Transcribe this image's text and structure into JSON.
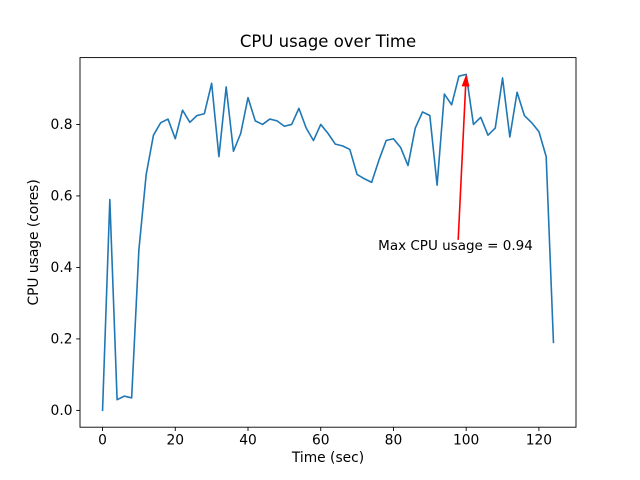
{
  "figure": {
    "background": "#ffffff"
  },
  "chart_data": {
    "type": "line",
    "title": "CPU usage over Time",
    "xlabel": "Time (sec)",
    "ylabel": "CPU usage (cores)",
    "xlim": [
      -6.2,
      130.2
    ],
    "ylim": [
      -0.047,
      0.987
    ],
    "xticks": [
      0,
      20,
      40,
      60,
      80,
      100,
      120
    ],
    "xtick_labels": [
      "0",
      "20",
      "40",
      "60",
      "80",
      "100",
      "120"
    ],
    "yticks": [
      0.0,
      0.2,
      0.4,
      0.6,
      0.8
    ],
    "ytick_labels": [
      "0.0",
      "0.2",
      "0.4",
      "0.6",
      "0.8"
    ],
    "grid": false,
    "legend": null,
    "line_color": "#1f77b4",
    "line_width": 1.6,
    "x": [
      0,
      2,
      4,
      6,
      8,
      10,
      12,
      14,
      16,
      18,
      20,
      22,
      24,
      26,
      28,
      30,
      32,
      34,
      36,
      38,
      40,
      42,
      44,
      46,
      48,
      50,
      52,
      54,
      56,
      58,
      60,
      62,
      64,
      66,
      68,
      70,
      72,
      74,
      76,
      78,
      80,
      82,
      84,
      86,
      88,
      90,
      92,
      94,
      96,
      98,
      100,
      102,
      104,
      106,
      108,
      110,
      112,
      114,
      116,
      118,
      120,
      122,
      124
    ],
    "y": [
      0.0,
      0.59,
      0.03,
      0.04,
      0.035,
      0.45,
      0.66,
      0.77,
      0.805,
      0.815,
      0.76,
      0.84,
      0.806,
      0.825,
      0.83,
      0.915,
      0.71,
      0.905,
      0.725,
      0.775,
      0.875,
      0.81,
      0.8,
      0.815,
      0.81,
      0.795,
      0.8,
      0.845,
      0.79,
      0.755,
      0.8,
      0.775,
      0.745,
      0.74,
      0.73,
      0.66,
      0.648,
      0.638,
      0.7,
      0.755,
      0.76,
      0.735,
      0.685,
      0.79,
      0.835,
      0.825,
      0.63,
      0.885,
      0.855,
      0.935,
      0.94,
      0.8,
      0.82,
      0.77,
      0.79,
      0.93,
      0.765,
      0.89,
      0.825,
      0.805,
      0.78,
      0.71,
      0.19
    ],
    "annotation": {
      "text": "Max CPU usage = 0.94",
      "color": "#ff0000",
      "xy": [
        100,
        0.94
      ],
      "text_pos": [
        75.8,
        0.449
      ],
      "arrow_tail": [
        97.8,
        0.477
      ]
    }
  }
}
